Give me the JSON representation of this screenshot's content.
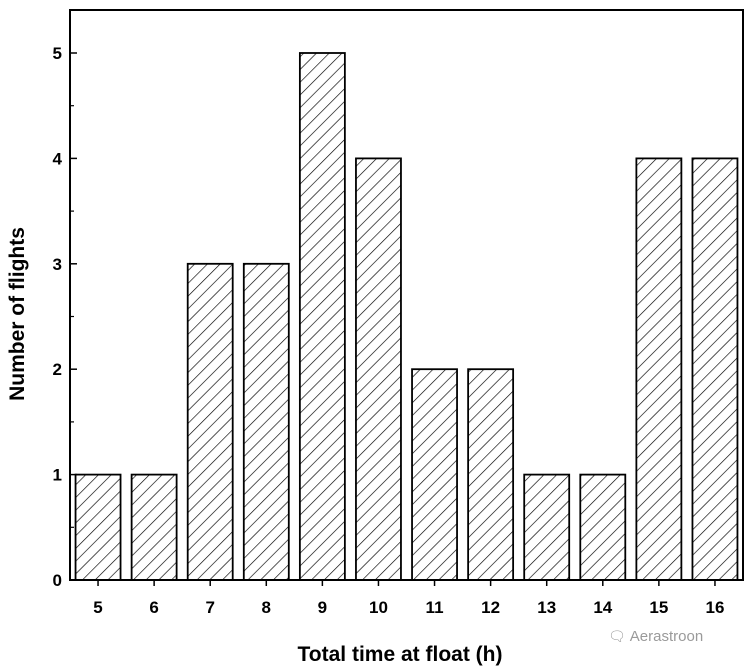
{
  "chart_data": {
    "type": "bar",
    "categories": [
      "5",
      "6",
      "7",
      "8",
      "9",
      "10",
      "11",
      "12",
      "13",
      "14",
      "15",
      "16"
    ],
    "values": [
      1,
      1,
      3,
      3,
      5,
      4,
      2,
      2,
      1,
      1,
      4,
      4
    ],
    "title": "",
    "xlabel": "Total time at float (h)",
    "ylabel": "Number of flights",
    "ylim": [
      0,
      5.5
    ],
    "yticks": [
      "0",
      "1",
      "2",
      "3",
      "4",
      "5"
    ],
    "grid": false,
    "bar_fill": "diagonal-hatch",
    "colors": {
      "bar_stroke": "#000000",
      "hatch": "#000000",
      "background": "#ffffff"
    }
  },
  "watermark": {
    "text": "Aerastroon",
    "icon": "wechat-icon"
  }
}
